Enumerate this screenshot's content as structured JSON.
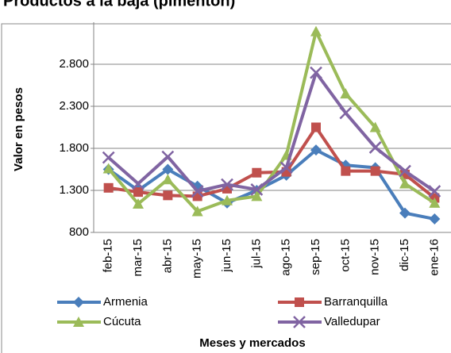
{
  "chart_data": {
    "type": "line",
    "title": "Productos a la baja (pimentón)",
    "y_label": "Valor en pesos",
    "x_label": "Meses y mercados",
    "categories": [
      "feb-15",
      "mar-15",
      "abr-15",
      "may-15",
      "jun-15",
      "jul-15",
      "ago-15",
      "sep-15",
      "oct-15",
      "nov-15",
      "dic-15",
      "ene-16"
    ],
    "series": [
      {
        "name": "Armenia",
        "color": "#4a7ebb",
        "marker": "diamond",
        "values": [
          1550,
          1300,
          1550,
          1350,
          1150,
          1300,
          1480,
          1780,
          1600,
          1570,
          1030,
          960
        ]
      },
      {
        "name": "Barranquilla",
        "color": "#c0504d",
        "marker": "square",
        "values": [
          1330,
          1280,
          1240,
          1230,
          1320,
          1510,
          1520,
          2050,
          1530,
          1530,
          1490,
          1210
        ]
      },
      {
        "name": "Cúcuta",
        "color": "#9bbb59",
        "marker": "triangle",
        "values": [
          1560,
          1140,
          1430,
          1050,
          1180,
          1230,
          1720,
          3190,
          2450,
          2050,
          1380,
          1150
        ]
      },
      {
        "name": "Valledupar",
        "color": "#8064a2",
        "marker": "x",
        "values": [
          1690,
          1380,
          1700,
          1290,
          1370,
          1310,
          1570,
          2700,
          2220,
          1810,
          1530,
          1290
        ]
      }
    ],
    "ylim": [
      800,
      3300
    ],
    "yticks": [
      800,
      {
        "value": 1300,
        "label": "1.300"
      },
      {
        "value": 1800,
        "label": "1.800"
      },
      {
        "value": 2300,
        "label": "2.300"
      },
      {
        "value": 2800,
        "label": "2.800"
      }
    ],
    "grid": true
  }
}
